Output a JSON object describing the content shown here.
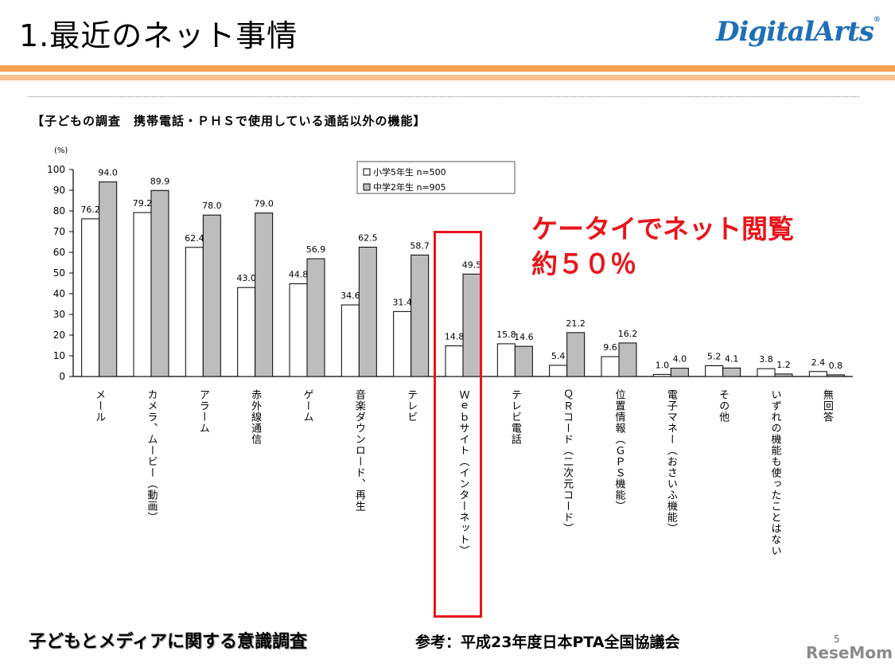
{
  "slide": {
    "title": "1.最近のネット事情",
    "logo": "DigitalArts",
    "logo_mark": "®"
  },
  "callout": {
    "line1": "ケータイでネット閲覧",
    "line2": "約５０％"
  },
  "footer": {
    "left": "子どもとメディアに関する意識調査",
    "right": "参考：平成23年度日本PTA全国協議会",
    "page_number": "5",
    "watermark": "ReseMom"
  },
  "colors": {
    "accent_orange": "#f2a04f",
    "highlight_red": "#e8141a",
    "series_gray": "#bdbdbd",
    "series_white": "#ffffff"
  },
  "chart_data": {
    "type": "bar",
    "title": "【子どもの調査　携帯電話・ＰＨＳで使用している通話以外の機能】",
    "ylabel": "(%)",
    "ylim": [
      0,
      100
    ],
    "yticks": [
      0,
      10,
      20,
      30,
      40,
      50,
      60,
      70,
      80,
      90,
      100
    ],
    "legend_position": "top-center",
    "categories": [
      "メール",
      "カメラ、ムービー（動画）",
      "アラーム",
      "赤外線通信",
      "ゲーム",
      "音楽ダウンロード、再生",
      "テレビ",
      "Ｗｅｂサイト（インターネット）",
      "テレビ電話",
      "ＱＲコード（二次元コード）",
      "位置情報（ＧＰＳ機能）",
      "電子マネー（おさいふ機能）",
      "その他",
      "いずれの機能も使ったことはない",
      "無回答"
    ],
    "series": [
      {
        "name": "小学5年生 n=500",
        "values": [
          76.2,
          79.2,
          62.4,
          43.0,
          44.8,
          34.6,
          31.4,
          14.8,
          15.8,
          5.4,
          9.6,
          1.0,
          5.2,
          3.8,
          2.4
        ],
        "labels": [
          "76.2",
          "79.2",
          "62.4",
          "43.0",
          "44.8",
          "34.6",
          "31.4",
          "14.8",
          "15.8",
          "5.4",
          "9.6",
          "1.0",
          "5.2",
          "3.8",
          "2.4"
        ]
      },
      {
        "name": "中学2年生 n=905",
        "values": [
          94.0,
          89.9,
          78.0,
          79.0,
          56.9,
          62.5,
          58.7,
          49.5,
          14.6,
          21.2,
          16.2,
          4.0,
          4.1,
          1.2,
          0.8
        ],
        "labels": [
          "94.0",
          "89.9",
          "78.0",
          "79.0",
          "56.9",
          "62.5",
          "58.7",
          "49.5",
          "14.6",
          "21.2",
          "16.2",
          "4.0",
          "4.1",
          "1.2",
          "0.8"
        ]
      }
    ],
    "highlighted_category": "Ｗｅｂサイト（インターネット）"
  }
}
